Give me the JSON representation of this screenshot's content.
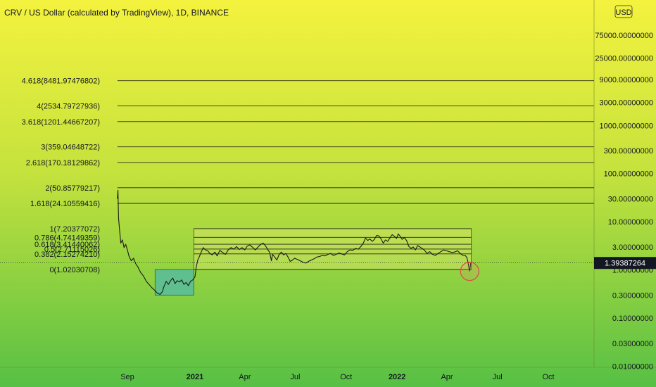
{
  "chart_data": {
    "type": "line",
    "title": "CRV / US Dollar (calculated by TradingView), 1D, BINANCE",
    "scale": "log",
    "currency": "USD",
    "last_price": "1.39387264",
    "y_ticks": [
      {
        "value": 75000,
        "label": "75000.00000000"
      },
      {
        "value": 25000,
        "label": "25000.00000000"
      },
      {
        "value": 9000,
        "label": "9000.00000000"
      },
      {
        "value": 3000,
        "label": "3000.00000000"
      },
      {
        "value": 1000,
        "label": "1000.00000000"
      },
      {
        "value": 300,
        "label": "300.00000000"
      },
      {
        "value": 100,
        "label": "100.00000000"
      },
      {
        "value": 30,
        "label": "30.00000000"
      },
      {
        "value": 10,
        "label": "10.00000000"
      },
      {
        "value": 3,
        "label": "3.00000000"
      },
      {
        "value": 1,
        "label": "1.00000000"
      },
      {
        "value": 0.3,
        "label": "0.30000000"
      },
      {
        "value": 0.1,
        "label": "0.10000000"
      },
      {
        "value": 0.03,
        "label": "0.03000000"
      },
      {
        "value": 0.01,
        "label": "0.01000000"
      }
    ],
    "x_ticks": [
      {
        "date": "2020-09-01",
        "label": "Sep",
        "bold": false
      },
      {
        "date": "2021-01-01",
        "label": "2021",
        "bold": true
      },
      {
        "date": "2021-04-01",
        "label": "Apr",
        "bold": false
      },
      {
        "date": "2021-07-01",
        "label": "Jul",
        "bold": false
      },
      {
        "date": "2021-10-01",
        "label": "Oct",
        "bold": false
      },
      {
        "date": "2022-01-01",
        "label": "2022",
        "bold": true
      },
      {
        "date": "2022-04-01",
        "label": "Apr",
        "bold": false
      },
      {
        "date": "2022-07-01",
        "label": "Jul",
        "bold": false
      },
      {
        "date": "2022-10-01",
        "label": "Oct",
        "bold": false
      }
    ],
    "fib_levels": [
      {
        "label": "4.618(8481.97476802)",
        "value": 8481.97476802,
        "extension": true
      },
      {
        "label": "4(2534.79727936)",
        "value": 2534.79727936,
        "extension": true
      },
      {
        "label": "3.618(1201.44667207)",
        "value": 1201.44667207,
        "extension": true
      },
      {
        "label": "3(359.04648722)",
        "value": 359.04648722,
        "extension": true
      },
      {
        "label": "2.618(170.18129862)",
        "value": 170.18129862,
        "extension": true
      },
      {
        "label": "2(50.85779217)",
        "value": 50.85779217,
        "extension": true
      },
      {
        "label": "1.618(24.10559416)",
        "value": 24.10559416,
        "extension": true
      },
      {
        "label": "1(7.20377072)",
        "value": 7.20377072,
        "extension": false
      },
      {
        "label": "0.786(4.74149359)",
        "value": 4.74149359,
        "extension": false
      },
      {
        "label": "0.618(3.41440062)",
        "value": 3.41440062,
        "extension": false
      },
      {
        "label": "0.5(2.71115026)",
        "value": 2.71115026,
        "extension": false
      },
      {
        "label": "0.382(2.15274210)",
        "value": 2.1527421,
        "extension": false
      },
      {
        "label": "0(1.02030708)",
        "value": 1.02030708,
        "extension": false
      }
    ],
    "ranges": [
      {
        "name": "accumulation-box",
        "from": "2020-10-21",
        "to": "2020-12-30",
        "low": 0.3,
        "high": 1.02,
        "fill": "#5fbf8f",
        "stroke": "#2e6b4a"
      },
      {
        "name": "fib-range-box",
        "from": "2020-12-30",
        "to": "2022-05-15",
        "low": 1.02030708,
        "high": 7.20377072,
        "fill": "rgba(235,235,120,0.35)",
        "stroke": "#5a5a20"
      }
    ],
    "marker": {
      "date": "2022-05-12",
      "value": 1.0,
      "color": "#e0474c"
    },
    "series": [
      {
        "points": [
          [
            "2020-08-14",
            30
          ],
          [
            "2020-08-15",
            45
          ],
          [
            "2020-08-16",
            12
          ],
          [
            "2020-08-18",
            6.5
          ],
          [
            "2020-08-20",
            3.6
          ],
          [
            "2020-08-23",
            4.2
          ],
          [
            "2020-08-26",
            2.9
          ],
          [
            "2020-08-29",
            3.4
          ],
          [
            "2020-09-01",
            2.6
          ],
          [
            "2020-09-04",
            1.9
          ],
          [
            "2020-09-08",
            1.55
          ],
          [
            "2020-09-12",
            1.75
          ],
          [
            "2020-09-16",
            1.35
          ],
          [
            "2020-09-20",
            1.15
          ],
          [
            "2020-09-25",
            0.88
          ],
          [
            "2020-09-30",
            0.75
          ],
          [
            "2020-10-05",
            0.58
          ],
          [
            "2020-10-10",
            0.5
          ],
          [
            "2020-10-15",
            0.43
          ],
          [
            "2020-10-20",
            0.38
          ],
          [
            "2020-10-25",
            0.33
          ],
          [
            "2020-10-30",
            0.31
          ],
          [
            "2020-11-03",
            0.35
          ],
          [
            "2020-11-06",
            0.45
          ],
          [
            "2020-11-10",
            0.58
          ],
          [
            "2020-11-14",
            0.5
          ],
          [
            "2020-11-18",
            0.6
          ],
          [
            "2020-11-22",
            0.68
          ],
          [
            "2020-11-26",
            0.52
          ],
          [
            "2020-11-30",
            0.6
          ],
          [
            "2020-12-04",
            0.56
          ],
          [
            "2020-12-08",
            0.62
          ],
          [
            "2020-12-12",
            0.5
          ],
          [
            "2020-12-16",
            0.55
          ],
          [
            "2020-12-20",
            0.47
          ],
          [
            "2020-12-24",
            0.58
          ],
          [
            "2020-12-28",
            0.62
          ],
          [
            "2021-01-01",
            0.72
          ],
          [
            "2021-01-03",
            1.1
          ],
          [
            "2021-01-06",
            1.6
          ],
          [
            "2021-01-09",
            1.9
          ],
          [
            "2021-01-12",
            2.3
          ],
          [
            "2021-01-16",
            2.9
          ],
          [
            "2021-01-20",
            2.6
          ],
          [
            "2021-01-24",
            2.5
          ],
          [
            "2021-01-28",
            2.2
          ],
          [
            "2021-02-01",
            2.05
          ],
          [
            "2021-02-06",
            2.35
          ],
          [
            "2021-02-10",
            1.95
          ],
          [
            "2021-02-15",
            2.55
          ],
          [
            "2021-02-20",
            2.3
          ],
          [
            "2021-02-25",
            2.1
          ],
          [
            "2021-03-02",
            2.6
          ],
          [
            "2021-03-07",
            2.9
          ],
          [
            "2021-03-12",
            2.7
          ],
          [
            "2021-03-17",
            3.05
          ],
          [
            "2021-03-22",
            2.65
          ],
          [
            "2021-03-27",
            2.9
          ],
          [
            "2021-04-01",
            2.6
          ],
          [
            "2021-04-05",
            3.1
          ],
          [
            "2021-04-10",
            3.3
          ],
          [
            "2021-04-15",
            2.95
          ],
          [
            "2021-04-20",
            2.6
          ],
          [
            "2021-04-25",
            3.0
          ],
          [
            "2021-04-30",
            3.4
          ],
          [
            "2021-05-04",
            3.6
          ],
          [
            "2021-05-08",
            3.2
          ],
          [
            "2021-05-12",
            2.7
          ],
          [
            "2021-05-16",
            2.3
          ],
          [
            "2021-05-19",
            1.55
          ],
          [
            "2021-05-21",
            2.1
          ],
          [
            "2021-05-25",
            1.85
          ],
          [
            "2021-05-29",
            1.6
          ],
          [
            "2021-06-02",
            2.1
          ],
          [
            "2021-06-06",
            2.35
          ],
          [
            "2021-06-10",
            2.05
          ],
          [
            "2021-06-14",
            2.2
          ],
          [
            "2021-06-18",
            1.85
          ],
          [
            "2021-06-22",
            1.5
          ],
          [
            "2021-06-26",
            1.6
          ],
          [
            "2021-06-30",
            1.75
          ],
          [
            "2021-07-05",
            1.65
          ],
          [
            "2021-07-10",
            1.55
          ],
          [
            "2021-07-15",
            1.45
          ],
          [
            "2021-07-20",
            1.38
          ],
          [
            "2021-07-25",
            1.5
          ],
          [
            "2021-07-30",
            1.6
          ],
          [
            "2021-08-04",
            1.7
          ],
          [
            "2021-08-09",
            1.85
          ],
          [
            "2021-08-14",
            1.9
          ],
          [
            "2021-08-19",
            2.0
          ],
          [
            "2021-08-24",
            1.95
          ],
          [
            "2021-08-29",
            2.1
          ],
          [
            "2021-09-03",
            2.2
          ],
          [
            "2021-09-08",
            2.0
          ],
          [
            "2021-09-13",
            2.1
          ],
          [
            "2021-09-18",
            2.25
          ],
          [
            "2021-09-23",
            2.15
          ],
          [
            "2021-09-28",
            2.05
          ],
          [
            "2021-10-03",
            2.4
          ],
          [
            "2021-10-08",
            2.6
          ],
          [
            "2021-10-13",
            2.55
          ],
          [
            "2021-10-18",
            2.8
          ],
          [
            "2021-10-23",
            2.7
          ],
          [
            "2021-10-28",
            3.1
          ],
          [
            "2021-11-01",
            3.6
          ],
          [
            "2021-11-05",
            4.6
          ],
          [
            "2021-11-09",
            4.1
          ],
          [
            "2021-11-13",
            4.4
          ],
          [
            "2021-11-17",
            3.9
          ],
          [
            "2021-11-21",
            4.3
          ],
          [
            "2021-11-25",
            5.2
          ],
          [
            "2021-11-29",
            5.1
          ],
          [
            "2021-12-03",
            4.4
          ],
          [
            "2021-12-07",
            3.6
          ],
          [
            "2021-12-11",
            4.2
          ],
          [
            "2021-12-15",
            3.9
          ],
          [
            "2021-12-19",
            4.6
          ],
          [
            "2021-12-23",
            5.4
          ],
          [
            "2021-12-27",
            5.0
          ],
          [
            "2021-12-31",
            4.5
          ],
          [
            "2022-01-03",
            5.6
          ],
          [
            "2022-01-06",
            5.1
          ],
          [
            "2022-01-10",
            4.3
          ],
          [
            "2022-01-14",
            4.7
          ],
          [
            "2022-01-18",
            4.1
          ],
          [
            "2022-01-22",
            3.1
          ],
          [
            "2022-01-26",
            2.8
          ],
          [
            "2022-01-30",
            3.0
          ],
          [
            "2022-02-03",
            2.6
          ],
          [
            "2022-02-07",
            3.2
          ],
          [
            "2022-02-11",
            3.0
          ],
          [
            "2022-02-15",
            2.8
          ],
          [
            "2022-02-19",
            2.6
          ],
          [
            "2022-02-24",
            2.2
          ],
          [
            "2022-03-01",
            2.4
          ],
          [
            "2022-03-06",
            2.1
          ],
          [
            "2022-03-11",
            2.0
          ],
          [
            "2022-03-16",
            2.2
          ],
          [
            "2022-03-21",
            2.4
          ],
          [
            "2022-03-26",
            2.6
          ],
          [
            "2022-03-31",
            2.5
          ],
          [
            "2022-04-05",
            2.4
          ],
          [
            "2022-04-10",
            2.3
          ],
          [
            "2022-04-15",
            2.35
          ],
          [
            "2022-04-20",
            2.5
          ],
          [
            "2022-04-25",
            2.2
          ],
          [
            "2022-04-30",
            2.0
          ],
          [
            "2022-05-04",
            2.0
          ],
          [
            "2022-05-07",
            1.8
          ],
          [
            "2022-05-09",
            1.45
          ],
          [
            "2022-05-11",
            1.05
          ],
          [
            "2022-05-12",
            0.95
          ],
          [
            "2022-05-14",
            1.39
          ]
        ]
      }
    ]
  }
}
